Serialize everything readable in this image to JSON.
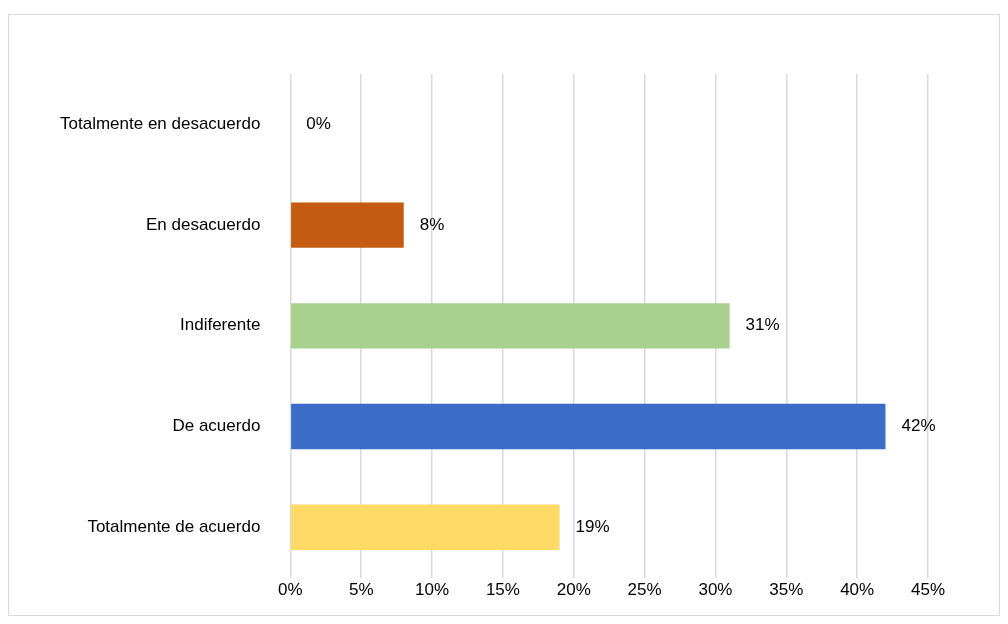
{
  "chart_data": {
    "type": "bar",
    "orientation": "horizontal",
    "categories": [
      "Totalmente en desacuerdo",
      "En desacuerdo",
      "Indiferente",
      "De acuerdo",
      "Totalmente de acuerdo"
    ],
    "values": [
      0,
      8,
      31,
      42,
      19
    ],
    "colors": [
      "#1f2a44",
      "#c55a11",
      "#a9d18e",
      "#3a6cc8",
      "#ffd966"
    ],
    "value_labels": [
      "0%",
      "8%",
      "31%",
      "42%",
      "19%"
    ],
    "xlim": [
      0,
      45
    ],
    "xticks": [
      {
        "value": 0,
        "label": "0%"
      },
      {
        "value": 5,
        "label": "5%"
      },
      {
        "value": 10,
        "label": "10%"
      },
      {
        "value": 15,
        "label": "15%"
      },
      {
        "value": 20,
        "label": "20%"
      },
      {
        "value": 25,
        "label": "25%"
      },
      {
        "value": 30,
        "label": "30%"
      },
      {
        "value": 35,
        "label": "35%"
      },
      {
        "value": 40,
        "label": "40%"
      },
      {
        "value": 45,
        "label": "45%"
      }
    ],
    "grid": "x",
    "legend": false
  }
}
